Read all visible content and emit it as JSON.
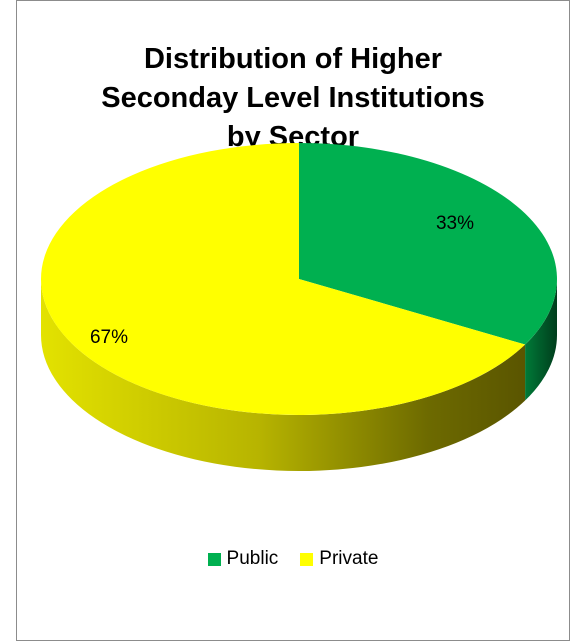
{
  "chart_data": {
    "type": "pie",
    "title": "Distribution of  Higher\nSeconday Level Institutions\nby Sector",
    "categories": [
      "Public",
      "Private"
    ],
    "values": [
      33,
      67
    ],
    "labels": [
      "33%",
      "67%"
    ],
    "colors": [
      "#00b050",
      "#ffff00"
    ],
    "legend_position": "bottom",
    "style": "3d"
  }
}
